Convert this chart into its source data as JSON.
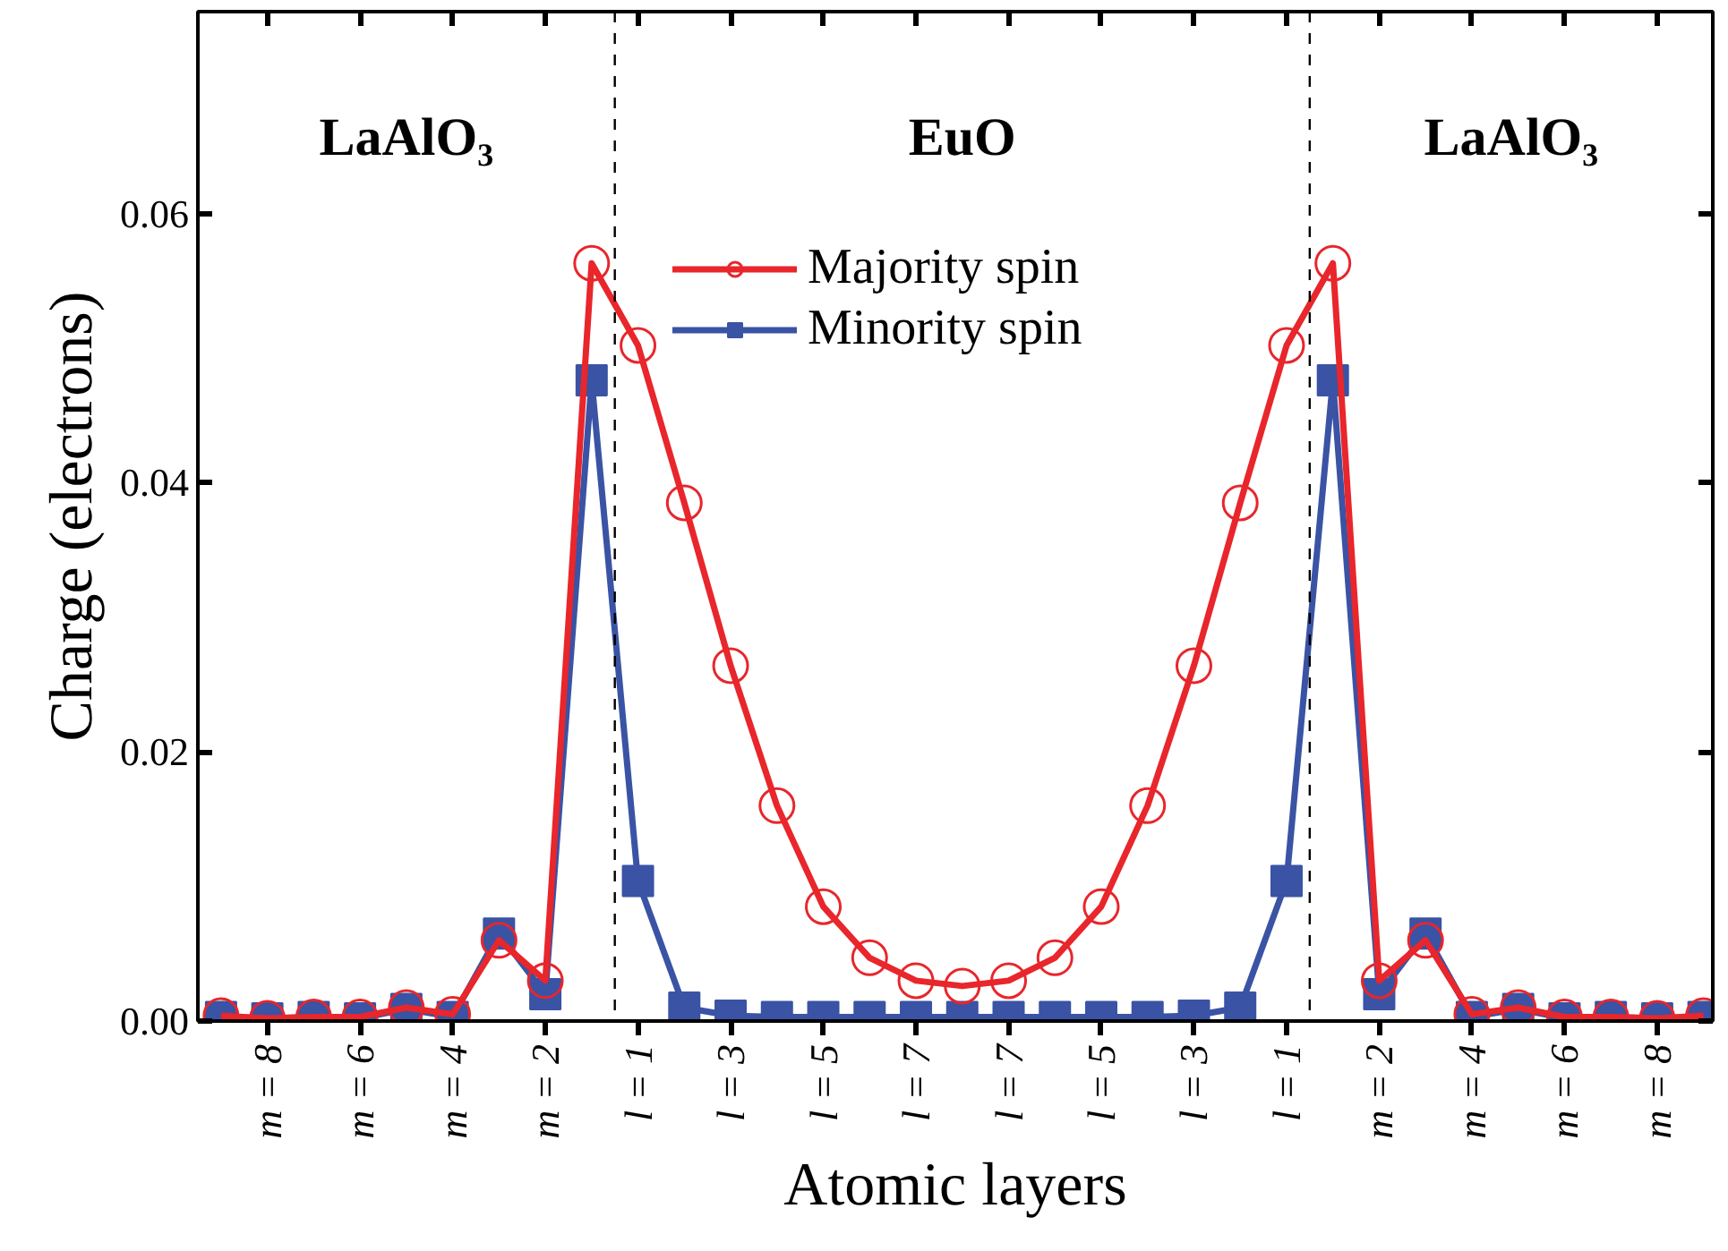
{
  "chart_data": {
    "type": "line",
    "xlabel": "Atomic layers",
    "ylabel": "Charge (electrons)",
    "categories": [
      null,
      "m = 8",
      null,
      "m = 6",
      null,
      "m = 4",
      null,
      "m = 2",
      null,
      "l = 1",
      null,
      "l = 3",
      null,
      "l = 5",
      null,
      "l = 7",
      null,
      "l = 7",
      null,
      "l = 5",
      null,
      "l = 3",
      null,
      "l = 1",
      null,
      "m = 2",
      null,
      "m = 4",
      null,
      "m = 6",
      null,
      "m = 8",
      null
    ],
    "ylim": [
      0,
      0.075
    ],
    "yticks": [
      {
        "value": 0,
        "label": "0.00"
      },
      {
        "value": 0.02,
        "label": "0.02"
      },
      {
        "value": 0.04,
        "label": "0.04"
      },
      {
        "value": 0.06,
        "label": "0.06"
      }
    ],
    "series": [
      {
        "name": "Majority spin",
        "color": "#e8262b",
        "marker": "circle",
        "values": [
          0.0004,
          0.0002,
          0.0003,
          0.0003,
          0.001,
          0.0005,
          0.006,
          0.003,
          0.0563,
          0.0502,
          0.0385,
          0.0264,
          0.016,
          0.0085,
          0.0047,
          0.003,
          0.0026,
          0.003,
          0.0047,
          0.0085,
          0.016,
          0.0264,
          0.0385,
          0.0502,
          0.0563,
          0.003,
          0.006,
          0.0005,
          0.001,
          0.0003,
          0.0003,
          0.0002,
          0.0004
        ]
      },
      {
        "name": "Minority spin",
        "color": "#3a53a4",
        "marker": "square",
        "values": [
          0.0003,
          0.0002,
          0.0003,
          0.0002,
          0.0009,
          0.0003,
          0.0065,
          0.002,
          0.0476,
          0.0104,
          0.001,
          0.0004,
          0.0003,
          0.0003,
          0.0003,
          0.0003,
          0.0003,
          0.0003,
          0.0003,
          0.0003,
          0.0003,
          0.0004,
          0.001,
          0.0104,
          0.0476,
          0.002,
          0.0065,
          0.0003,
          0.0009,
          0.0002,
          0.0003,
          0.0002,
          0.0003
        ]
      }
    ],
    "annotations": [
      "LaAlO₃",
      "EuO",
      "LaAlO₃"
    ],
    "legend": "top",
    "grid": false,
    "line_style": "solid"
  }
}
